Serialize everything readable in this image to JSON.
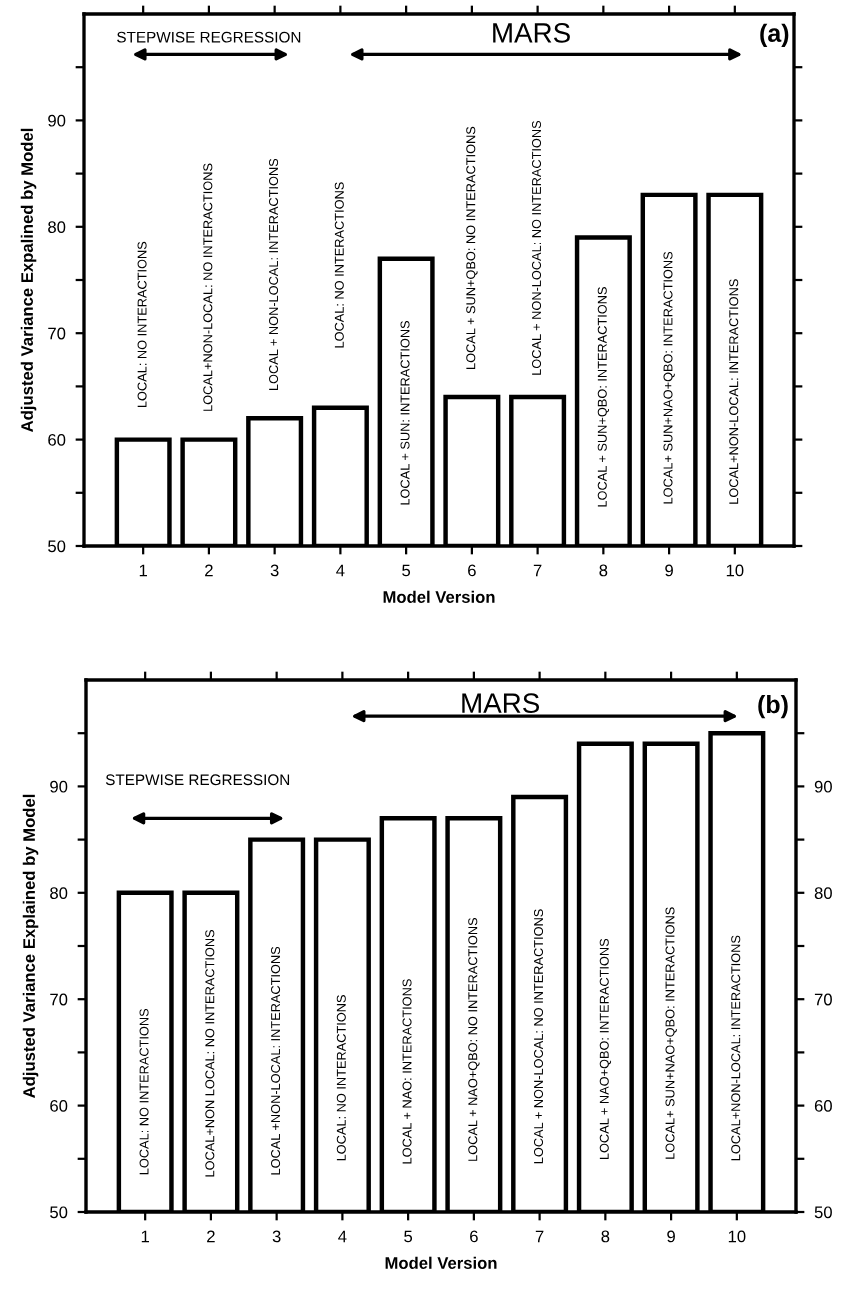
{
  "chart_data": [
    {
      "type": "bar",
      "xlabel": "Model Version",
      "ylabel": "Adjusted Variance Expalined by Model",
      "categories": [
        "1",
        "2",
        "3",
        "4",
        "5",
        "6",
        "7",
        "8",
        "9",
        "10"
      ],
      "values": [
        60,
        60,
        62,
        63,
        77,
        64,
        64,
        79,
        83,
        83
      ],
      "color": "#ffffff",
      "ylim": [
        50,
        100
      ],
      "yticks": [
        50,
        {
          "value": 55,
          "label": null
        },
        60,
        {
          "value": 65,
          "label": null
        },
        70,
        {
          "value": 75,
          "label": null
        },
        80,
        {
          "value": 85,
          "label": null
        },
        90,
        {
          "value": 95,
          "label": null
        }
      ],
      "grid": false,
      "annotations": [
        "LOCAL: NO INTERACTIONS",
        "LOCAL+NON-LOCAL: NO INTERACTIONS",
        "LOCAL + NON-LOCAL: INTERACTIONS",
        "LOCAL: NO INTERACTIONS",
        "LOCAL + SUN: INTERACTIONS",
        "LOCAL + SUN+QBO: NO INTERACTIONS",
        "LOCAL + NON-LOCAL: NO INTERACTIONS",
        "LOCAL + SUN+QBO: INTERACTIONS",
        "LOCAL+ SUN+NAO+QBO: INTERACTIONS",
        "LOCAL+NON-LOCAL: INTERACTIONS",
        "STEPWISE REGRESSION",
        "MARS",
        "(a)"
      ]
    },
    {
      "type": "bar",
      "xlabel": "Model Version",
      "ylabel": "Adjusted Variance Explained by Model",
      "categories": [
        "1",
        "2",
        "3",
        "4",
        "5",
        "6",
        "7",
        "8",
        "9",
        "10"
      ],
      "values": [
        80,
        80,
        85,
        85,
        87,
        87,
        89,
        94,
        94,
        95
      ],
      "color": "#ffffff",
      "ylim": [
        50,
        100
      ],
      "yticks": [
        50,
        {
          "value": 55,
          "label": null
        },
        60,
        {
          "value": 65,
          "label": null
        },
        70,
        {
          "value": 75,
          "label": null
        },
        80,
        {
          "value": 85,
          "label": null
        },
        90,
        {
          "value": 95,
          "label": null
        }
      ],
      "y2lim": [
        50,
        100
      ],
      "y2ticks": [
        50,
        {
          "value": 55,
          "label": null
        },
        60,
        {
          "value": 65,
          "label": null
        },
        70,
        {
          "value": 75,
          "label": null
        },
        80,
        {
          "value": 85,
          "label": null
        },
        90,
        {
          "value": 95,
          "label": null
        }
      ],
      "grid": false,
      "annotations": [
        "LOCAL: NO INTERACTIONS",
        "LOCAL+NON LOCAL: NO INTERACTIONS",
        "LOCAL +NON-LOCAL: INTERACTIONS",
        "LOCAL: NO INTERACTIONS",
        "LOCAL + NAO: INTERACTIONS",
        "LOCAL + NAO+QBO: NO INTERACTIONS",
        "LOCAL + NON-LOCAL: NO INTERACTIONS",
        "LOCAL + NAO+QBO: INTERACTIONS",
        "LOCAL+ SUN+NAO+QBO: INTERACTIONS",
        "LOCAL+NON-LOCAL: INTERACTIONS",
        "STEPWISE REGRESSION",
        "MARS",
        "(b)"
      ]
    }
  ]
}
